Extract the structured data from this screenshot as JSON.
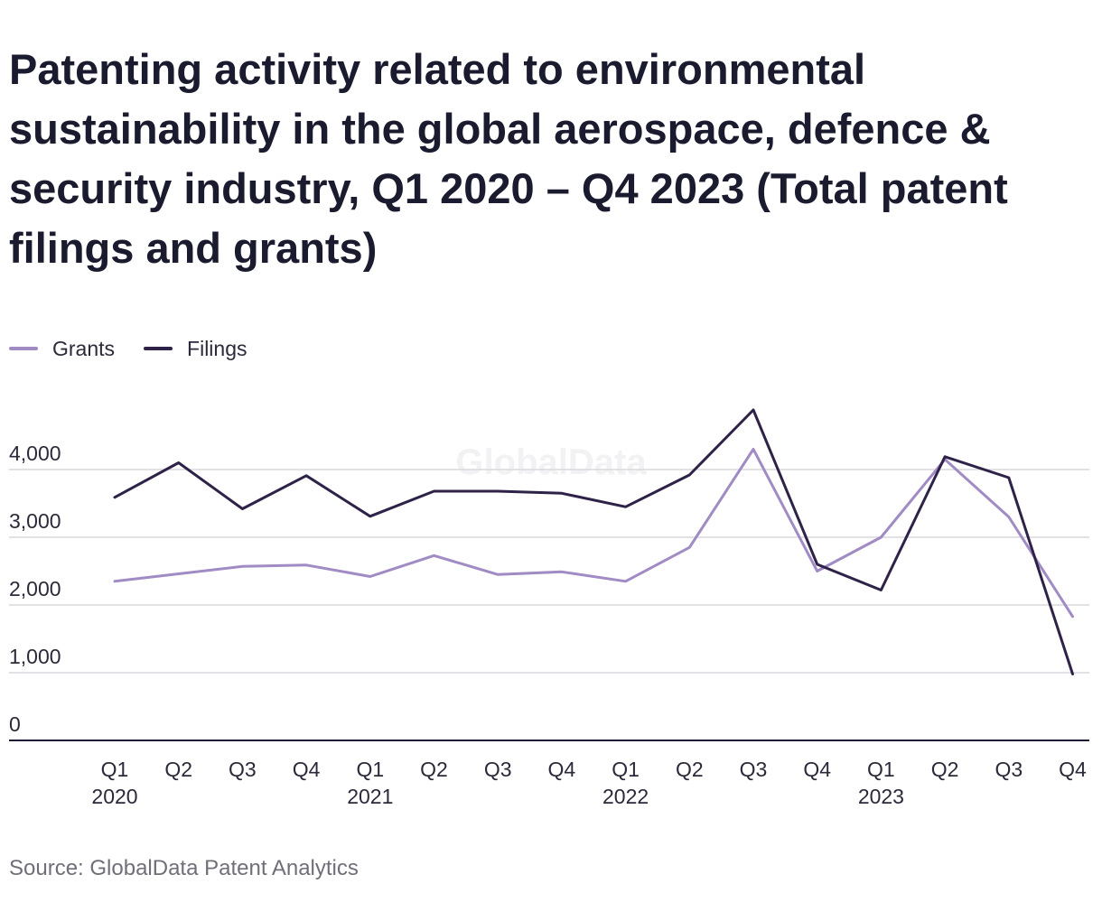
{
  "chart_data": {
    "type": "line",
    "title": "Patenting activity related to environmental sustainability in the global aerospace, defence & security industry, Q1 2020 – Q4 2023 (Total patent filings and grants)",
    "source": "Source: GlobalData Patent Analytics",
    "watermark": "GlobalData",
    "categories": [
      "Q1 2020",
      "Q2 2020",
      "Q3 2020",
      "Q4 2020",
      "Q1 2021",
      "Q2 2021",
      "Q3 2021",
      "Q4 2021",
      "Q1 2022",
      "Q2 2022",
      "Q3 2022",
      "Q4 2022",
      "Q1 2023",
      "Q2 2023",
      "Q3 2023",
      "Q4 2023"
    ],
    "x_tick_labels": [
      {
        "quarter": "Q1",
        "year": "2020"
      },
      {
        "quarter": "Q2",
        "year": ""
      },
      {
        "quarter": "Q3",
        "year": ""
      },
      {
        "quarter": "Q4",
        "year": ""
      },
      {
        "quarter": "Q1",
        "year": "2021"
      },
      {
        "quarter": "Q2",
        "year": ""
      },
      {
        "quarter": "Q3",
        "year": ""
      },
      {
        "quarter": "Q4",
        "year": ""
      },
      {
        "quarter": "Q1",
        "year": "2022"
      },
      {
        "quarter": "Q2",
        "year": ""
      },
      {
        "quarter": "Q3",
        "year": ""
      },
      {
        "quarter": "Q4",
        "year": ""
      },
      {
        "quarter": "Q1",
        "year": "2023"
      },
      {
        "quarter": "Q2",
        "year": ""
      },
      {
        "quarter": "Q3",
        "year": ""
      },
      {
        "quarter": "Q4",
        "year": ""
      }
    ],
    "y_ticks": [
      0,
      1000,
      2000,
      3000,
      4000
    ],
    "y_tick_labels": [
      "0",
      "1,000",
      "2,000",
      "3,000",
      "4,000"
    ],
    "ylim": [
      0,
      5000
    ],
    "grid": true,
    "legend_position": "top-left",
    "series": [
      {
        "name": "Grants",
        "color": "#a08bc4",
        "values": [
          2350,
          2460,
          2570,
          2590,
          2420,
          2730,
          2450,
          2490,
          2350,
          2850,
          4300,
          2500,
          3000,
          4150,
          3300,
          1830
        ]
      },
      {
        "name": "Filings",
        "color": "#2e2248",
        "values": [
          3590,
          4100,
          3420,
          3910,
          3310,
          3680,
          3680,
          3650,
          3450,
          3920,
          4880,
          2600,
          2220,
          4190,
          3880,
          980
        ]
      }
    ]
  }
}
